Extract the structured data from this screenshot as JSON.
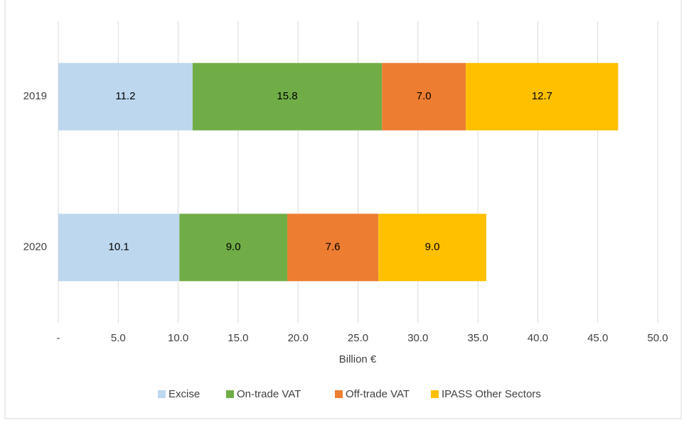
{
  "chart_data": {
    "type": "stacked-barh",
    "x_label": "Billion €",
    "categories": [
      "2019",
      "2020"
    ],
    "series": [
      {
        "name": "Excise",
        "color": "#bdd7ee",
        "values": [
          11.2,
          10.1
        ],
        "value_labels": [
          "11.2",
          "10.1"
        ]
      },
      {
        "name": "On-trade VAT",
        "color": "#70ad47",
        "values": [
          15.8,
          9.0
        ],
        "value_labels": [
          "15.8",
          "9.0"
        ]
      },
      {
        "name": "Off-trade VAT",
        "color": "#ed7d31",
        "values": [
          7.0,
          7.6
        ],
        "value_labels": [
          "7.0",
          "7.6"
        ]
      },
      {
        "name": "IPASS Other Sectors",
        "color": "#ffc000",
        "values": [
          12.7,
          9.0
        ],
        "value_labels": [
          "12.7",
          "9.0"
        ]
      }
    ],
    "xlim": [
      0,
      50
    ],
    "xticks": [
      {
        "value": 0,
        "label": "-"
      },
      {
        "value": 5,
        "label": "5.0"
      },
      {
        "value": 10,
        "label": "10.0"
      },
      {
        "value": 15,
        "label": "15.0"
      },
      {
        "value": 20,
        "label": "20.0"
      },
      {
        "value": 25,
        "label": "25.0"
      },
      {
        "value": 30,
        "label": "30.0"
      },
      {
        "value": 35,
        "label": "35.0"
      },
      {
        "value": 40,
        "label": "40.0"
      },
      {
        "value": 45,
        "label": "45.0"
      },
      {
        "value": 50,
        "label": "50.0"
      }
    ],
    "grid": true,
    "legend": "bottom"
  }
}
